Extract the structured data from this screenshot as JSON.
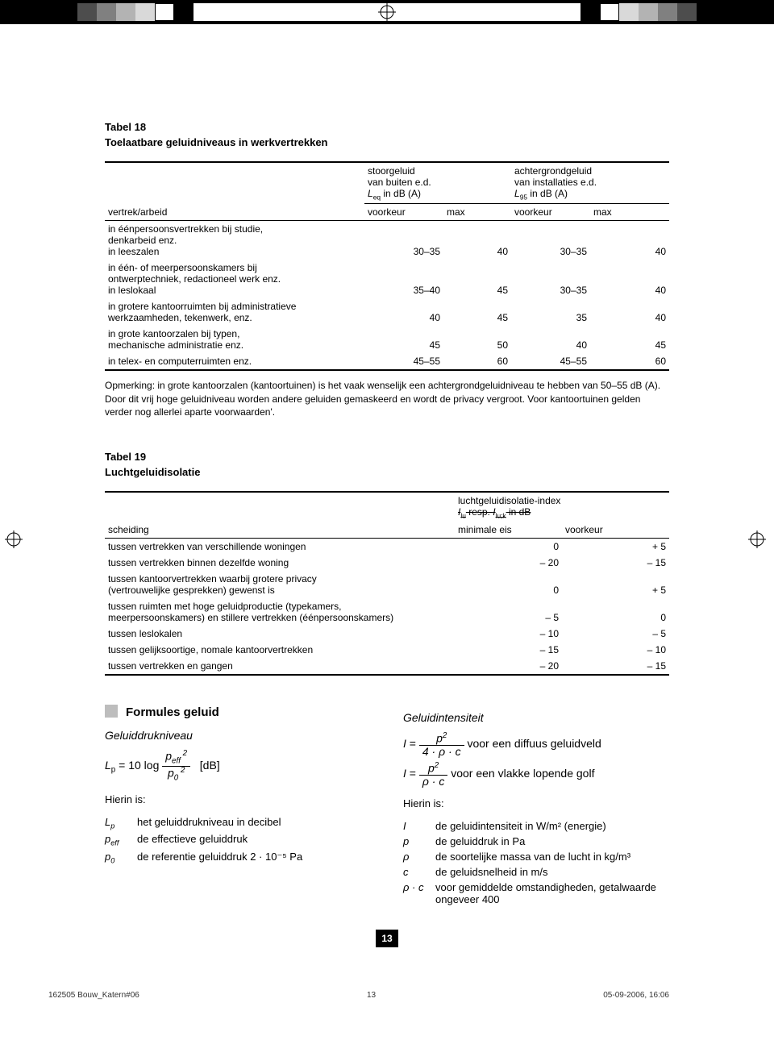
{
  "topbar": {
    "left_swatches": [
      "#000000",
      "#000000",
      "#000000",
      "#000000",
      "#4d4d4d",
      "#808080",
      "#b3b3b3",
      "#d9d9d9",
      "#ffffff",
      "#000000"
    ],
    "right_swatches": [
      "#000000",
      "#ffffff",
      "#d9d9d9",
      "#b3b3b3",
      "#808080",
      "#4d4d4d",
      "#000000",
      "#000000",
      "#000000",
      "#000000"
    ]
  },
  "table18": {
    "num": "Tabel 18",
    "title": "Toelaatbare geluidniveaus in werkvertrekken",
    "col_label": "vertrek/arbeid",
    "grp1_l1": "stoorgeluid",
    "grp1_l2": "van buiten e.d.",
    "grp1_l3a": "L",
    "grp1_l3b": "eq",
    "grp1_l3c": " in dB (A)",
    "grp2_l1": "achtergrondgeluid",
    "grp2_l2": "van installaties e.d.",
    "grp2_l3a": "L",
    "grp2_l3b": "95",
    "grp2_l3c": " in dB (A)",
    "sub_voorkeur": "voorkeur",
    "sub_max": "max",
    "rows": [
      {
        "label": "in éénpersoonsvertrekken bij studie,\ndenkarbeid enz.\nin leeszalen",
        "a": "30–35",
        "b": "40",
        "c": "30–35",
        "d": "40"
      },
      {
        "label": "in één- of meerpersoonskamers bij\nontwerptechniek, redactioneel werk enz.\nin leslokaal",
        "a": "35–40",
        "b": "45",
        "c": "30–35",
        "d": "40"
      },
      {
        "label": "in grotere kantoorruimten bij administratieve\nwerkzaamheden, tekenwerk, enz.",
        "a": "40",
        "b": "45",
        "c": "35",
        "d": "40"
      },
      {
        "label": "in grote kantoorzalen bij typen,\nmechanische administratie enz.",
        "a": "45",
        "b": "50",
        "c": "40",
        "d": "45"
      },
      {
        "label": "in telex- en computerruimten enz.",
        "a": "45–55",
        "b": "60",
        "c": "45–55",
        "d": "60"
      }
    ],
    "note": "Opmerking: in grote kantoorzalen (kantoortuinen) is het vaak wenselijk een achtergrondgeluidniveau te hebben van 50–55 dB (A). Door dit vrij hoge geluidniveau worden andere geluiden gemaskeerd en wordt de privacy vergroot. Voor kantoortuinen gelden verder nog allerlei aparte voorwaarden'."
  },
  "table19": {
    "num": "Tabel 19",
    "title": "Luchtgeluidisolatie",
    "col_label": "scheiding",
    "grp_l1": "luchtgeluidisolatie-index",
    "grp_l2a": "I",
    "grp_l2b": "lu",
    "grp_l2c": " resp. ",
    "grp_l2d": "I",
    "grp_l2e": "lu;k",
    "grp_l2f": " in dB",
    "sub_min": "minimale eis",
    "sub_voorkeur": "voorkeur",
    "rows": [
      {
        "label": "tussen vertrekken van verschillende woningen",
        "a": "0",
        "b": "+ 5"
      },
      {
        "label": "tussen vertrekken binnen dezelfde woning",
        "a": "– 20",
        "b": "– 15"
      },
      {
        "label": "tussen kantoorvertrekken waarbij grotere privacy\n(vertrouwelijke gesprekken) gewenst is",
        "a": "0",
        "b": "+ 5"
      },
      {
        "label": "tussen ruimten met hoge geluidproductie (typekamers,\nmeerpersoonskamers) en stillere vertrekken (éénpersoonskamers)",
        "a": "–  5",
        "b": "0"
      },
      {
        "label": "tussen leslokalen",
        "a": "– 10",
        "b": "–  5"
      },
      {
        "label": "tussen gelijksoortige, nomale kantoorvertrekken",
        "a": "– 15",
        "b": "– 10"
      },
      {
        "label": "tussen vertrekken en gangen",
        "a": "– 20",
        "b": "– 15"
      }
    ]
  },
  "formulas": {
    "heading": "Formules geluid",
    "left": {
      "sub1": "Geluiddrukniveau",
      "eq_db": "[dB]",
      "hierin": "Hierin is:",
      "lp_k": "L",
      "lp_sub": "p",
      "lp_v": "het geluiddrukniveau in decibel",
      "peff_k": "p",
      "peff_sub": "eff",
      "peff_v": "de effectieve geluiddruk",
      "p0_k": "p",
      "p0_sub": "0",
      "p0_v": "de referentie geluiddruk 2 · 10⁻⁵ Pa"
    },
    "right": {
      "sub1": "Geluidintensiteit",
      "eq1_tail": " voor een diffuus geluidveld",
      "eq2_tail": " voor een vlakke lopende golf",
      "hierin": "Hierin is:",
      "I_k": "I",
      "I_v": "de geluidintensiteit in W/m² (energie)",
      "p_k": "p",
      "p_v": "de geluiddruk in Pa",
      "rho_k": "ρ",
      "rho_v": "de soortelijke massa van de lucht in kg/m³",
      "c_k": "c",
      "c_v": "de geluidsnelheid in m/s",
      "rc_k": "ρ · c",
      "rc_v": "voor gemiddelde omstandigheden, getalwaarde ongeveer 400"
    }
  },
  "page_number": "13",
  "footer": {
    "left": "162505 Bouw_Katern#06",
    "mid": "13",
    "right": "05-09-2006, 16:06"
  }
}
